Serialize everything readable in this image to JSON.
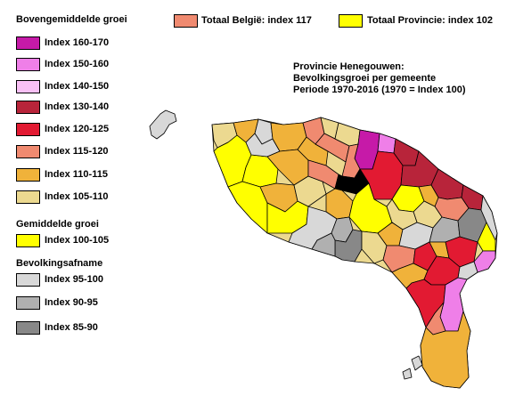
{
  "legend": {
    "growth_heading": "Bovengemiddelde groei",
    "growth_items": [
      {
        "label": "Index 160-170",
        "color": "#c61aa8"
      },
      {
        "label": "Index 150-160",
        "color": "#ef7fe8"
      },
      {
        "label": "Index 140-150",
        "color": "#f9c0f5"
      },
      {
        "label": "Index 130-140",
        "color": "#b8243a"
      },
      {
        "label": "Index 120-125",
        "color": "#e21a32"
      },
      {
        "label": "Index 115-120",
        "color": "#f08a70"
      },
      {
        "label": "Index 110-115",
        "color": "#f0b23a"
      },
      {
        "label": "Index 105-110",
        "color": "#ecd990"
      }
    ],
    "average_heading": "Gemiddelde groei",
    "average_items": [
      {
        "label": "Index 100-105",
        "color": "#ffff00"
      }
    ],
    "decline_heading": "Bevolkingsafname",
    "decline_items": [
      {
        "label": "Index 95-100",
        "color": "#d8d8d8"
      },
      {
        "label": "Index 90-95",
        "color": "#b0b0b0"
      },
      {
        "label": "Index 85-90",
        "color": "#888888"
      }
    ]
  },
  "totals": {
    "belgium": {
      "label": "Totaal België: index 117",
      "color": "#f08a70"
    },
    "province": {
      "label": "Totaal Provincie: index 102",
      "color": "#ffff00"
    }
  },
  "title_lines": [
    "Provincie Henegouwen:",
    "Bevolkingsgroei per gemeente",
    "Periode 1970-2016 (1970 = Index 100)"
  ],
  "colors": {
    "outline": "#000000",
    "index_160_170": "#c61aa8",
    "index_150_160": "#ef7fe8",
    "index_130_140": "#b8243a",
    "index_120_125": "#e21a32",
    "index_115_120": "#f08a70",
    "index_110_115": "#f0b23a",
    "index_105_110": "#ecd990",
    "index_100_105": "#ffff00",
    "index_95_100": "#d8d8d8",
    "index_90_95": "#b0b0b0",
    "index_85_90": "#888888"
  }
}
